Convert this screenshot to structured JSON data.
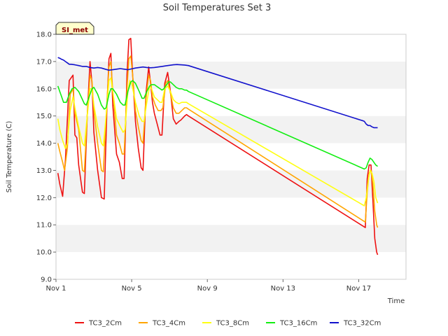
{
  "chart_data": {
    "type": "line",
    "title": "Soil Temperatures Set 3",
    "xlabel": "Time",
    "ylabel": "Soil Temperature (C)",
    "ylim": [
      9.0,
      18.0
    ],
    "xlim": [
      0,
      18.5
    ],
    "badge": "SI_met",
    "y_ticks": [
      "9.0",
      "10.0",
      "11.0",
      "12.0",
      "13.0",
      "14.0",
      "15.0",
      "16.0",
      "17.0",
      "18.0"
    ],
    "x_ticks": [
      {
        "label": "Nov 1",
        "value": 0
      },
      {
        "label": "Nov 5",
        "value": 4
      },
      {
        "label": "Nov 9",
        "value": 8
      },
      {
        "label": "Nov 13",
        "value": 12
      },
      {
        "label": "Nov 17",
        "value": 16
      }
    ],
    "series": [
      {
        "name": "TC3_2Cm",
        "color": "#ee1111",
        "points": [
          [
            0.1,
            12.9
          ],
          [
            0.2,
            12.5
          ],
          [
            0.35,
            12.05
          ],
          [
            0.5,
            13.4
          ],
          [
            0.7,
            16.3
          ],
          [
            0.9,
            16.5
          ],
          [
            1.0,
            14.3
          ],
          [
            1.1,
            14.2
          ],
          [
            1.2,
            13.2
          ],
          [
            1.4,
            12.2
          ],
          [
            1.5,
            12.15
          ],
          [
            1.65,
            15.0
          ],
          [
            1.8,
            17.0
          ],
          [
            1.9,
            16.2
          ],
          [
            2.0,
            14.4
          ],
          [
            2.2,
            13.0
          ],
          [
            2.4,
            12.0
          ],
          [
            2.55,
            11.95
          ],
          [
            2.7,
            15.5
          ],
          [
            2.8,
            17.1
          ],
          [
            2.9,
            17.3
          ],
          [
            3.0,
            15.4
          ],
          [
            3.2,
            13.6
          ],
          [
            3.35,
            13.3
          ],
          [
            3.5,
            12.7
          ],
          [
            3.6,
            12.7
          ],
          [
            3.75,
            16.5
          ],
          [
            3.85,
            17.8
          ],
          [
            3.95,
            17.85
          ],
          [
            4.05,
            16.5
          ],
          [
            4.2,
            14.8
          ],
          [
            4.35,
            13.8
          ],
          [
            4.5,
            13.1
          ],
          [
            4.6,
            13.0
          ],
          [
            4.75,
            15.8
          ],
          [
            4.9,
            16.8
          ],
          [
            5.0,
            16.2
          ],
          [
            5.1,
            15.5
          ],
          [
            5.2,
            15.1
          ],
          [
            5.35,
            14.7
          ],
          [
            5.5,
            14.3
          ],
          [
            5.6,
            14.3
          ],
          [
            5.75,
            16.2
          ],
          [
            5.9,
            16.6
          ],
          [
            6.05,
            15.9
          ],
          [
            6.2,
            14.9
          ],
          [
            6.35,
            14.7
          ],
          [
            6.5,
            14.8
          ],
          [
            6.6,
            14.85
          ],
          [
            6.8,
            15.0
          ],
          [
            6.9,
            15.05
          ],
          [
            7.0,
            15.0
          ],
          [
            16.35,
            10.9
          ],
          [
            16.45,
            12.7
          ],
          [
            16.55,
            13.2
          ],
          [
            16.65,
            13.2
          ],
          [
            16.75,
            11.9
          ],
          [
            16.85,
            10.5
          ],
          [
            16.95,
            10.0
          ],
          [
            17.0,
            9.9
          ]
        ]
      },
      {
        "name": "TC3_4Cm",
        "color": "#ffa500",
        "points": [
          [
            0.1,
            14.0
          ],
          [
            0.2,
            13.7
          ],
          [
            0.35,
            13.3
          ],
          [
            0.45,
            13.0
          ],
          [
            0.6,
            13.8
          ],
          [
            0.75,
            15.8
          ],
          [
            0.9,
            16.0
          ],
          [
            1.0,
            15.1
          ],
          [
            1.2,
            14.5
          ],
          [
            1.4,
            13.0
          ],
          [
            1.5,
            12.95
          ],
          [
            1.65,
            15.0
          ],
          [
            1.8,
            16.5
          ],
          [
            1.9,
            16.3
          ],
          [
            2.0,
            15.2
          ],
          [
            2.2,
            14.0
          ],
          [
            2.4,
            13.0
          ],
          [
            2.5,
            12.95
          ],
          [
            2.65,
            15.0
          ],
          [
            2.8,
            16.8
          ],
          [
            2.9,
            17.0
          ],
          [
            3.0,
            15.9
          ],
          [
            3.2,
            14.3
          ],
          [
            3.35,
            14.0
          ],
          [
            3.5,
            13.6
          ],
          [
            3.6,
            13.6
          ],
          [
            3.75,
            16.0
          ],
          [
            3.85,
            17.1
          ],
          [
            3.95,
            17.2
          ],
          [
            4.05,
            16.5
          ],
          [
            4.2,
            15.2
          ],
          [
            4.35,
            14.6
          ],
          [
            4.5,
            14.1
          ],
          [
            4.6,
            14.0
          ],
          [
            4.75,
            15.6
          ],
          [
            4.9,
            16.5
          ],
          [
            5.0,
            16.3
          ],
          [
            5.1,
            15.7
          ],
          [
            5.25,
            15.4
          ],
          [
            5.4,
            15.2
          ],
          [
            5.55,
            15.2
          ],
          [
            5.65,
            15.3
          ],
          [
            5.8,
            16.2
          ],
          [
            5.9,
            16.3
          ],
          [
            6.0,
            16.0
          ],
          [
            6.2,
            15.3
          ],
          [
            6.35,
            15.1
          ],
          [
            6.5,
            15.1
          ],
          [
            6.65,
            15.2
          ],
          [
            6.8,
            15.3
          ],
          [
            6.9,
            15.3
          ],
          [
            7.0,
            15.25
          ],
          [
            16.35,
            11.1
          ],
          [
            16.45,
            12.2
          ],
          [
            16.55,
            12.9
          ],
          [
            16.65,
            13.0
          ],
          [
            16.75,
            12.5
          ],
          [
            16.85,
            11.5
          ],
          [
            16.95,
            11.0
          ],
          [
            17.0,
            10.9
          ]
        ]
      },
      {
        "name": "TC3_8Cm",
        "color": "#ffff11",
        "points": [
          [
            0.1,
            14.9
          ],
          [
            0.2,
            14.5
          ],
          [
            0.35,
            14.1
          ],
          [
            0.5,
            13.8
          ],
          [
            0.6,
            14.0
          ],
          [
            0.75,
            15.2
          ],
          [
            0.9,
            15.7
          ],
          [
            1.0,
            15.3
          ],
          [
            1.2,
            14.6
          ],
          [
            1.4,
            14.0
          ],
          [
            1.5,
            13.9
          ],
          [
            1.65,
            15.0
          ],
          [
            1.8,
            16.0
          ],
          [
            1.9,
            16.0
          ],
          [
            2.0,
            15.4
          ],
          [
            2.2,
            14.6
          ],
          [
            2.4,
            14.0
          ],
          [
            2.5,
            13.9
          ],
          [
            2.65,
            15.0
          ],
          [
            2.8,
            16.3
          ],
          [
            2.9,
            16.4
          ],
          [
            3.0,
            15.9
          ],
          [
            3.2,
            14.9
          ],
          [
            3.4,
            14.6
          ],
          [
            3.55,
            14.4
          ],
          [
            3.65,
            14.5
          ],
          [
            3.8,
            15.9
          ],
          [
            3.9,
            16.3
          ],
          [
            4.0,
            16.2
          ],
          [
            4.2,
            15.5
          ],
          [
            4.4,
            15.0
          ],
          [
            4.55,
            14.8
          ],
          [
            4.65,
            14.8
          ],
          [
            4.8,
            15.5
          ],
          [
            4.95,
            16.1
          ],
          [
            5.05,
            16.0
          ],
          [
            5.2,
            15.7
          ],
          [
            5.35,
            15.6
          ],
          [
            5.5,
            15.5
          ],
          [
            5.6,
            15.5
          ],
          [
            5.75,
            16.0
          ],
          [
            5.9,
            16.1
          ],
          [
            6.05,
            15.9
          ],
          [
            6.2,
            15.6
          ],
          [
            6.35,
            15.5
          ],
          [
            6.5,
            15.45
          ],
          [
            6.65,
            15.5
          ],
          [
            6.8,
            15.5
          ],
          [
            6.9,
            15.5
          ],
          [
            7.0,
            15.45
          ],
          [
            16.3,
            11.7
          ],
          [
            16.4,
            12.0
          ],
          [
            16.5,
            12.6
          ],
          [
            16.6,
            13.0
          ],
          [
            16.7,
            12.9
          ],
          [
            16.8,
            12.6
          ],
          [
            16.9,
            12.0
          ],
          [
            17.0,
            11.8
          ]
        ]
      },
      {
        "name": "TC3_16Cm",
        "color": "#11ee11",
        "points": [
          [
            0.1,
            16.1
          ],
          [
            0.2,
            15.9
          ],
          [
            0.3,
            15.7
          ],
          [
            0.4,
            15.5
          ],
          [
            0.55,
            15.5
          ],
          [
            0.7,
            15.8
          ],
          [
            0.85,
            16.0
          ],
          [
            1.0,
            16.05
          ],
          [
            1.2,
            15.9
          ],
          [
            1.4,
            15.6
          ],
          [
            1.5,
            15.45
          ],
          [
            1.6,
            15.4
          ],
          [
            1.75,
            15.7
          ],
          [
            1.9,
            16.0
          ],
          [
            2.0,
            16.05
          ],
          [
            2.2,
            15.8
          ],
          [
            2.4,
            15.4
          ],
          [
            2.55,
            15.25
          ],
          [
            2.65,
            15.3
          ],
          [
            2.8,
            15.8
          ],
          [
            2.9,
            16.0
          ],
          [
            3.0,
            16.0
          ],
          [
            3.2,
            15.8
          ],
          [
            3.4,
            15.5
          ],
          [
            3.55,
            15.4
          ],
          [
            3.65,
            15.4
          ],
          [
            3.8,
            15.9
          ],
          [
            3.95,
            16.25
          ],
          [
            4.05,
            16.3
          ],
          [
            4.2,
            16.2
          ],
          [
            4.4,
            15.9
          ],
          [
            4.55,
            15.65
          ],
          [
            4.65,
            15.65
          ],
          [
            4.8,
            15.9
          ],
          [
            4.95,
            16.1
          ],
          [
            5.05,
            16.15
          ],
          [
            5.2,
            16.15
          ],
          [
            5.4,
            16.05
          ],
          [
            5.6,
            15.95
          ],
          [
            5.7,
            16.0
          ],
          [
            5.85,
            16.15
          ],
          [
            5.95,
            16.25
          ],
          [
            6.05,
            16.25
          ],
          [
            6.2,
            16.15
          ],
          [
            6.35,
            16.05
          ],
          [
            6.5,
            16.0
          ],
          [
            6.65,
            16.0
          ],
          [
            6.8,
            15.95
          ],
          [
            6.9,
            15.95
          ],
          [
            7.0,
            15.9
          ],
          [
            16.3,
            13.05
          ],
          [
            16.4,
            13.1
          ],
          [
            16.5,
            13.3
          ],
          [
            16.6,
            13.45
          ],
          [
            16.7,
            13.4
          ],
          [
            16.8,
            13.3
          ],
          [
            16.9,
            13.2
          ],
          [
            17.0,
            13.15
          ]
        ]
      },
      {
        "name": "TC3_32Cm",
        "color": "#1111cc",
        "points": [
          [
            0.1,
            17.15
          ],
          [
            0.2,
            17.12
          ],
          [
            0.3,
            17.08
          ],
          [
            0.4,
            17.05
          ],
          [
            0.5,
            17.0
          ],
          [
            0.6,
            16.95
          ],
          [
            0.7,
            16.9
          ],
          [
            0.8,
            16.9
          ],
          [
            1.0,
            16.88
          ],
          [
            1.2,
            16.85
          ],
          [
            1.4,
            16.82
          ],
          [
            1.6,
            16.82
          ],
          [
            1.8,
            16.78
          ],
          [
            2.0,
            16.76
          ],
          [
            2.2,
            16.78
          ],
          [
            2.4,
            16.76
          ],
          [
            2.6,
            16.72
          ],
          [
            2.8,
            16.68
          ],
          [
            3.0,
            16.7
          ],
          [
            3.2,
            16.72
          ],
          [
            3.4,
            16.74
          ],
          [
            3.6,
            16.72
          ],
          [
            3.8,
            16.7
          ],
          [
            4.0,
            16.73
          ],
          [
            4.2,
            16.76
          ],
          [
            4.4,
            16.78
          ],
          [
            4.6,
            16.8
          ],
          [
            4.8,
            16.78
          ],
          [
            5.0,
            16.77
          ],
          [
            5.2,
            16.78
          ],
          [
            5.4,
            16.8
          ],
          [
            5.6,
            16.82
          ],
          [
            5.8,
            16.84
          ],
          [
            6.0,
            16.86
          ],
          [
            6.2,
            16.88
          ],
          [
            6.4,
            16.89
          ],
          [
            6.6,
            16.88
          ],
          [
            6.8,
            16.87
          ],
          [
            7.0,
            16.85
          ],
          [
            16.1,
            14.85
          ],
          [
            16.2,
            14.83
          ],
          [
            16.3,
            14.8
          ],
          [
            16.4,
            14.7
          ],
          [
            16.5,
            14.65
          ],
          [
            16.6,
            14.65
          ],
          [
            16.7,
            14.6
          ],
          [
            16.8,
            14.57
          ],
          [
            16.9,
            14.57
          ],
          [
            17.0,
            14.57
          ]
        ]
      }
    ]
  }
}
